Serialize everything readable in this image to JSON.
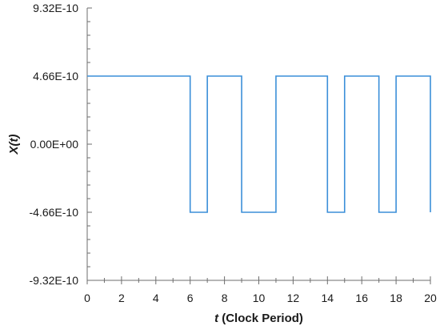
{
  "chart_data": {
    "type": "line",
    "step": true,
    "xlabel": {
      "variable": "t",
      "suffix": " (Clock Period)"
    },
    "ylabel": "X(t)",
    "xlim": [
      0,
      20
    ],
    "ylim": [
      -9.32e-10,
      9.32e-10
    ],
    "x_ticks": [
      0,
      2,
      4,
      6,
      8,
      10,
      12,
      14,
      16,
      18,
      20
    ],
    "x_tick_labels": [
      "0",
      "2",
      "4",
      "6",
      "8",
      "10",
      "12",
      "14",
      "16",
      "18",
      "20"
    ],
    "x_minor_step": 1,
    "y_ticks": [
      9.32e-10,
      4.66e-10,
      0,
      -4.66e-10,
      -9.32e-10
    ],
    "y_tick_labels": [
      "9.32E-10",
      "4.66E-10",
      "0.00E+00",
      "-4.66E-10",
      "-9.32E-10"
    ],
    "y_minor_step": 9.32e-11,
    "grid": false,
    "legend": "none",
    "series": [
      {
        "color": "#3b8fd9",
        "x": [
          0,
          6,
          6,
          7,
          7,
          9,
          9,
          11,
          11,
          14,
          14,
          15,
          15,
          17,
          17,
          18,
          18,
          20,
          20
        ],
        "y": [
          4.66e-10,
          4.66e-10,
          -4.66e-10,
          -4.66e-10,
          4.66e-10,
          4.66e-10,
          -4.66e-10,
          -4.66e-10,
          4.66e-10,
          4.66e-10,
          -4.66e-10,
          -4.66e-10,
          4.66e-10,
          4.66e-10,
          -4.66e-10,
          -4.66e-10,
          4.66e-10,
          4.66e-10,
          -4.66e-10
        ]
      }
    ]
  }
}
